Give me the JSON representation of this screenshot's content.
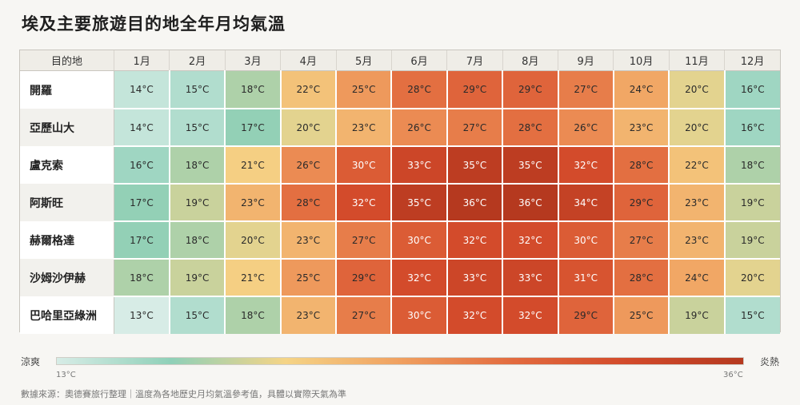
{
  "title": "埃及主要旅遊目的地全年月均氣溫",
  "chart_data": {
    "type": "heatmap",
    "title": "埃及主要旅遊目的地全年月均氣溫",
    "row_header": "目的地",
    "columns": [
      "1月",
      "2月",
      "3月",
      "4月",
      "5月",
      "6月",
      "7月",
      "8月",
      "9月",
      "10月",
      "11月",
      "12月"
    ],
    "unit": "°C",
    "rows": [
      {
        "name": "開羅",
        "values": [
          14,
          15,
          18,
          22,
          25,
          28,
          29,
          29,
          27,
          24,
          20,
          16
        ]
      },
      {
        "name": "亞歷山大",
        "values": [
          14,
          15,
          17,
          20,
          23,
          26,
          27,
          28,
          26,
          23,
          20,
          16
        ]
      },
      {
        "name": "盧克索",
        "values": [
          16,
          18,
          21,
          26,
          30,
          33,
          35,
          35,
          32,
          28,
          22,
          18
        ]
      },
      {
        "name": "阿斯旺",
        "values": [
          17,
          19,
          23,
          28,
          32,
          35,
          36,
          36,
          34,
          29,
          23,
          19
        ]
      },
      {
        "name": "赫爾格達",
        "values": [
          17,
          18,
          20,
          23,
          27,
          30,
          32,
          32,
          30,
          27,
          23,
          19
        ]
      },
      {
        "name": "沙姆沙伊赫",
        "values": [
          18,
          19,
          21,
          25,
          29,
          32,
          33,
          33,
          31,
          28,
          24,
          20
        ]
      },
      {
        "name": "巴哈里亞綠洲",
        "values": [
          13,
          15,
          18,
          23,
          27,
          30,
          32,
          32,
          29,
          25,
          19,
          15
        ]
      }
    ],
    "color_scale": {
      "min": 13,
      "max": 36,
      "stops": [
        "#d7ece6",
        "#8fd0b8",
        "#f5d486",
        "#f0a060",
        "#e26a3e",
        "#d24a2a",
        "#b5391f"
      ]
    },
    "legend": {
      "low_label": "涼爽",
      "high_label": "炎熱",
      "min_label": "13°C",
      "max_label": "36°C"
    }
  },
  "footer": "數據來源：奧德賽旅行整理｜溫度為各地歷史月均氣溫參考值，具體以實際天氣為準"
}
